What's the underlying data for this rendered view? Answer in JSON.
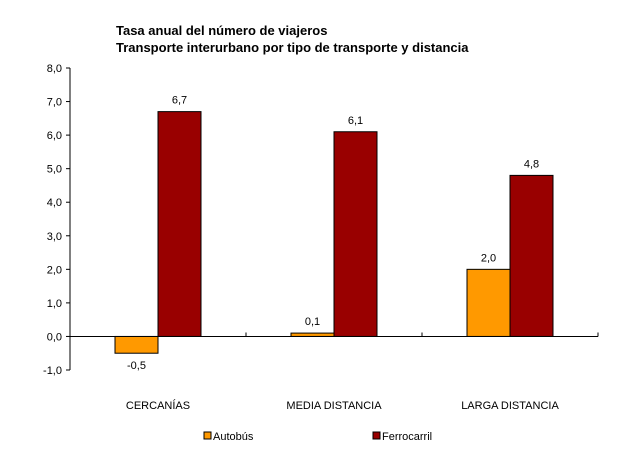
{
  "chart_data": {
    "type": "bar",
    "title": "Tasa anual del número de viajeros",
    "subtitle": "Transporte interurbano por tipo de transporte y distancia",
    "categories": [
      "CERCANÍAS",
      "MEDIA DISTANCIA",
      "LARGA DISTANCIA"
    ],
    "series": [
      {
        "name": "Autobús",
        "color": "#FF9900",
        "values": [
          -0.5,
          0.1,
          2.0
        ],
        "labels": [
          "-0,5",
          "0,1",
          "2,0"
        ]
      },
      {
        "name": "Ferrocarril",
        "color": "#990000",
        "values": [
          6.7,
          6.1,
          4.8
        ],
        "labels": [
          "6,7",
          "6,1",
          "4,8"
        ]
      }
    ],
    "ylim": [
      -1,
      8
    ],
    "yticks": [
      8,
      7,
      6,
      5,
      4,
      3,
      2,
      1,
      0,
      -1
    ],
    "ytick_labels": [
      "8,0",
      "7,0",
      "6,0",
      "5,0",
      "4,0",
      "3,0",
      "2,0",
      "1,0",
      "0,0",
      "-1,0"
    ],
    "xlabel": "",
    "ylabel": "",
    "grid": false,
    "legend": "bottom"
  }
}
